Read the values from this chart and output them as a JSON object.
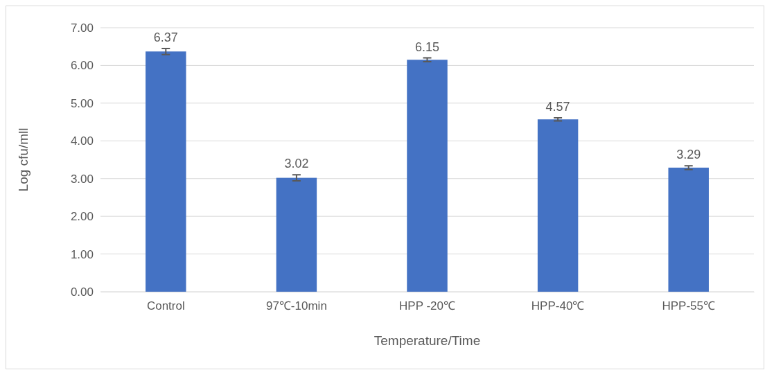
{
  "chart_data": {
    "type": "bar",
    "xlabel": "Temperature/Time",
    "ylabel": "Log cfu/mll",
    "categories": [
      "Control",
      "97℃-10min",
      "HPP -20℃",
      "HPP-40℃",
      "HPP-55℃"
    ],
    "values": [
      6.37,
      3.02,
      6.15,
      4.57,
      3.29
    ],
    "errors": [
      0.08,
      0.08,
      0.05,
      0.04,
      0.05
    ],
    "color": "#4472c4",
    "ylim": [
      0,
      7
    ],
    "yticks": [
      {
        "value": 0,
        "label": "0.00"
      },
      {
        "value": 1,
        "label": "1.00"
      },
      {
        "value": 2,
        "label": "2.00"
      },
      {
        "value": 3,
        "label": "3.00"
      },
      {
        "value": 4,
        "label": "4.00"
      },
      {
        "value": 5,
        "label": "5.00"
      },
      {
        "value": 6,
        "label": "6.00"
      },
      {
        "value": 7,
        "label": "7.00"
      }
    ],
    "grid": "y",
    "data_labels": true
  }
}
